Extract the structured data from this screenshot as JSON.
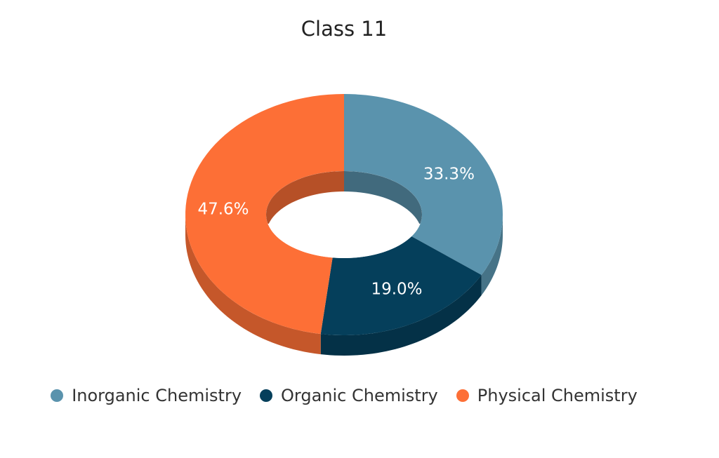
{
  "chart_data": {
    "type": "pie",
    "variant": "3d-donut",
    "title": "Class 11",
    "categories": [
      "Inorganic Chemistry",
      "Organic Chemistry",
      "Physical Chemistry"
    ],
    "values": [
      33.3,
      19.0,
      47.6
    ],
    "value_labels": [
      "33.3%",
      "19.0%",
      "47.6%"
    ],
    "colors": [
      "#5a93ad",
      "#053f5b",
      "#fd6f36"
    ],
    "legend_position": "bottom-center"
  }
}
